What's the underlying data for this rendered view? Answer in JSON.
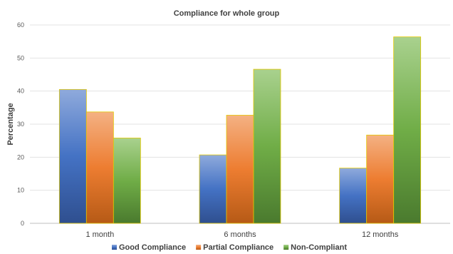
{
  "chart_data": {
    "type": "bar",
    "title": "Compliance for whole group",
    "xlabel": "",
    "ylabel": "Percentage",
    "ylim": [
      0,
      60
    ],
    "yticks": [
      0,
      10,
      20,
      30,
      40,
      50,
      60
    ],
    "grid": true,
    "legend_position": "bottom",
    "categories": [
      "1 month",
      "6 months",
      "12 months"
    ],
    "series": [
      {
        "name": "Good Compliance",
        "values": [
          40.5,
          20.7,
          16.7
        ],
        "color": "#4472c4"
      },
      {
        "name": "Partial Compliance",
        "values": [
          33.7,
          32.7,
          26.7
        ],
        "color": "#ed7d31"
      },
      {
        "name": "Non-Compliant",
        "values": [
          25.8,
          46.6,
          56.4
        ],
        "color": "#70ad47"
      }
    ]
  }
}
